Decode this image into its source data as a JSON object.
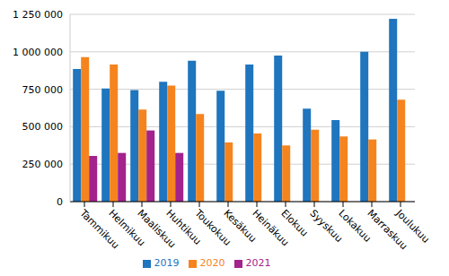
{
  "chart_data": {
    "type": "bar",
    "categories": [
      "Tammikuu",
      "Helmikuu",
      "Maaliskuu",
      "Huhtikuu",
      "Toukokuu",
      "Kesäkuu",
      "Heinäkuu",
      "Elokuu",
      "Syyskuu",
      "Lokakuu",
      "Marraskuu",
      "Joulukuu"
    ],
    "series": [
      {
        "name": "2019",
        "color": "#1f75be",
        "values": [
          885000,
          755000,
          745000,
          800000,
          940000,
          740000,
          915000,
          975000,
          620000,
          545000,
          1000000,
          1220000
        ]
      },
      {
        "name": "2020",
        "color": "#f5841f",
        "values": [
          965000,
          915000,
          615000,
          775000,
          585000,
          395000,
          455000,
          375000,
          480000,
          435000,
          415000,
          680000
        ]
      },
      {
        "name": "2021",
        "color": "#a3228b",
        "values": [
          305000,
          325000,
          475000,
          325000,
          null,
          null,
          null,
          null,
          null,
          null,
          null,
          null
        ]
      }
    ],
    "ylim": [
      0,
      1250000
    ],
    "yticks": [
      0,
      {
        "value": 250000,
        "label": "250 000"
      },
      {
        "value": 500000,
        "label": "500 000"
      },
      {
        "value": 750000,
        "label": "750 000"
      },
      {
        "value": 1000000,
        "label": "1 000 000"
      },
      {
        "value": 1250000,
        "label": "1 250 000"
      }
    ],
    "grid": true,
    "legend": "bottom"
  }
}
